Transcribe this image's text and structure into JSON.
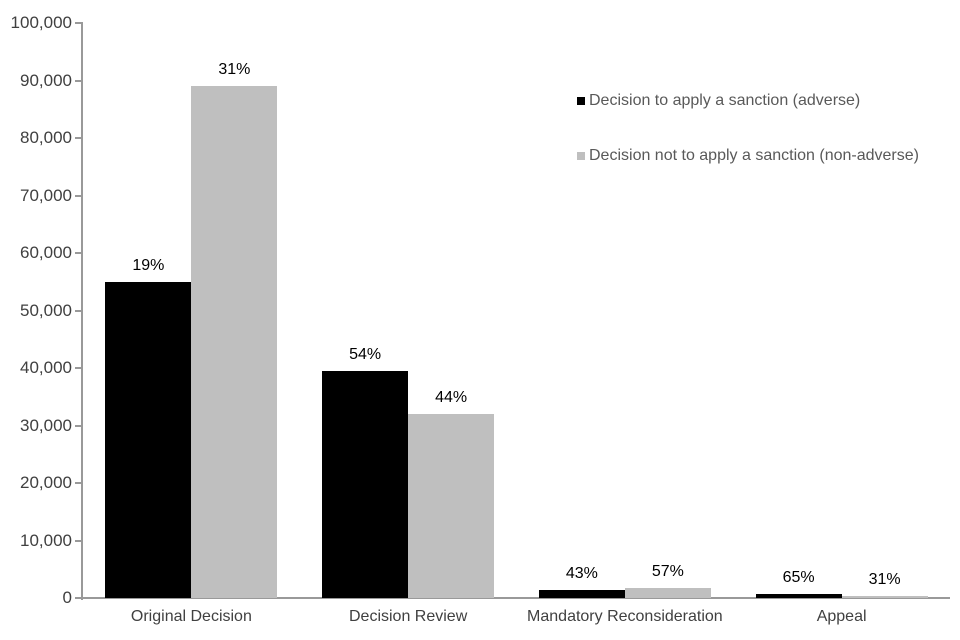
{
  "chart_data": {
    "type": "bar",
    "title": "",
    "categories": [
      "Original Decision",
      "Decision Review",
      "Mandatory Reconsideration",
      "Appeal"
    ],
    "series": [
      {
        "name": "Decision to apply a sanction (adverse)",
        "color": "#000000",
        "values": [
          55000,
          39500,
          1400,
          700
        ],
        "labels": [
          "19%",
          "54%",
          "43%",
          "65%"
        ]
      },
      {
        "name": "Decision not to apply a sanction (non-adverse)",
        "color": "#bfbfbf",
        "values": [
          89000,
          32000,
          1800,
          350
        ],
        "labels": [
          "31%",
          "44%",
          "57%",
          "31%"
        ]
      }
    ],
    "y_axis": {
      "min": 0,
      "max": 100000,
      "tick_step": 10000,
      "tick_labels": [
        "0",
        "10,000",
        "20,000",
        "30,000",
        "40,000",
        "50,000",
        "60,000",
        "70,000",
        "80,000",
        "90,000",
        "100,000"
      ]
    },
    "x_axis_label": "",
    "legend_position": "top-right",
    "grid": false
  },
  "colors": {
    "background": "#ffffff",
    "axis_line": "#999999",
    "tick_label_text": "#404040",
    "category_label_text": "#404040",
    "data_label_text": "#000000",
    "legend_text": "#595959",
    "adverse_bar": "#000000",
    "non_adverse_bar": "#bfbfbf"
  }
}
